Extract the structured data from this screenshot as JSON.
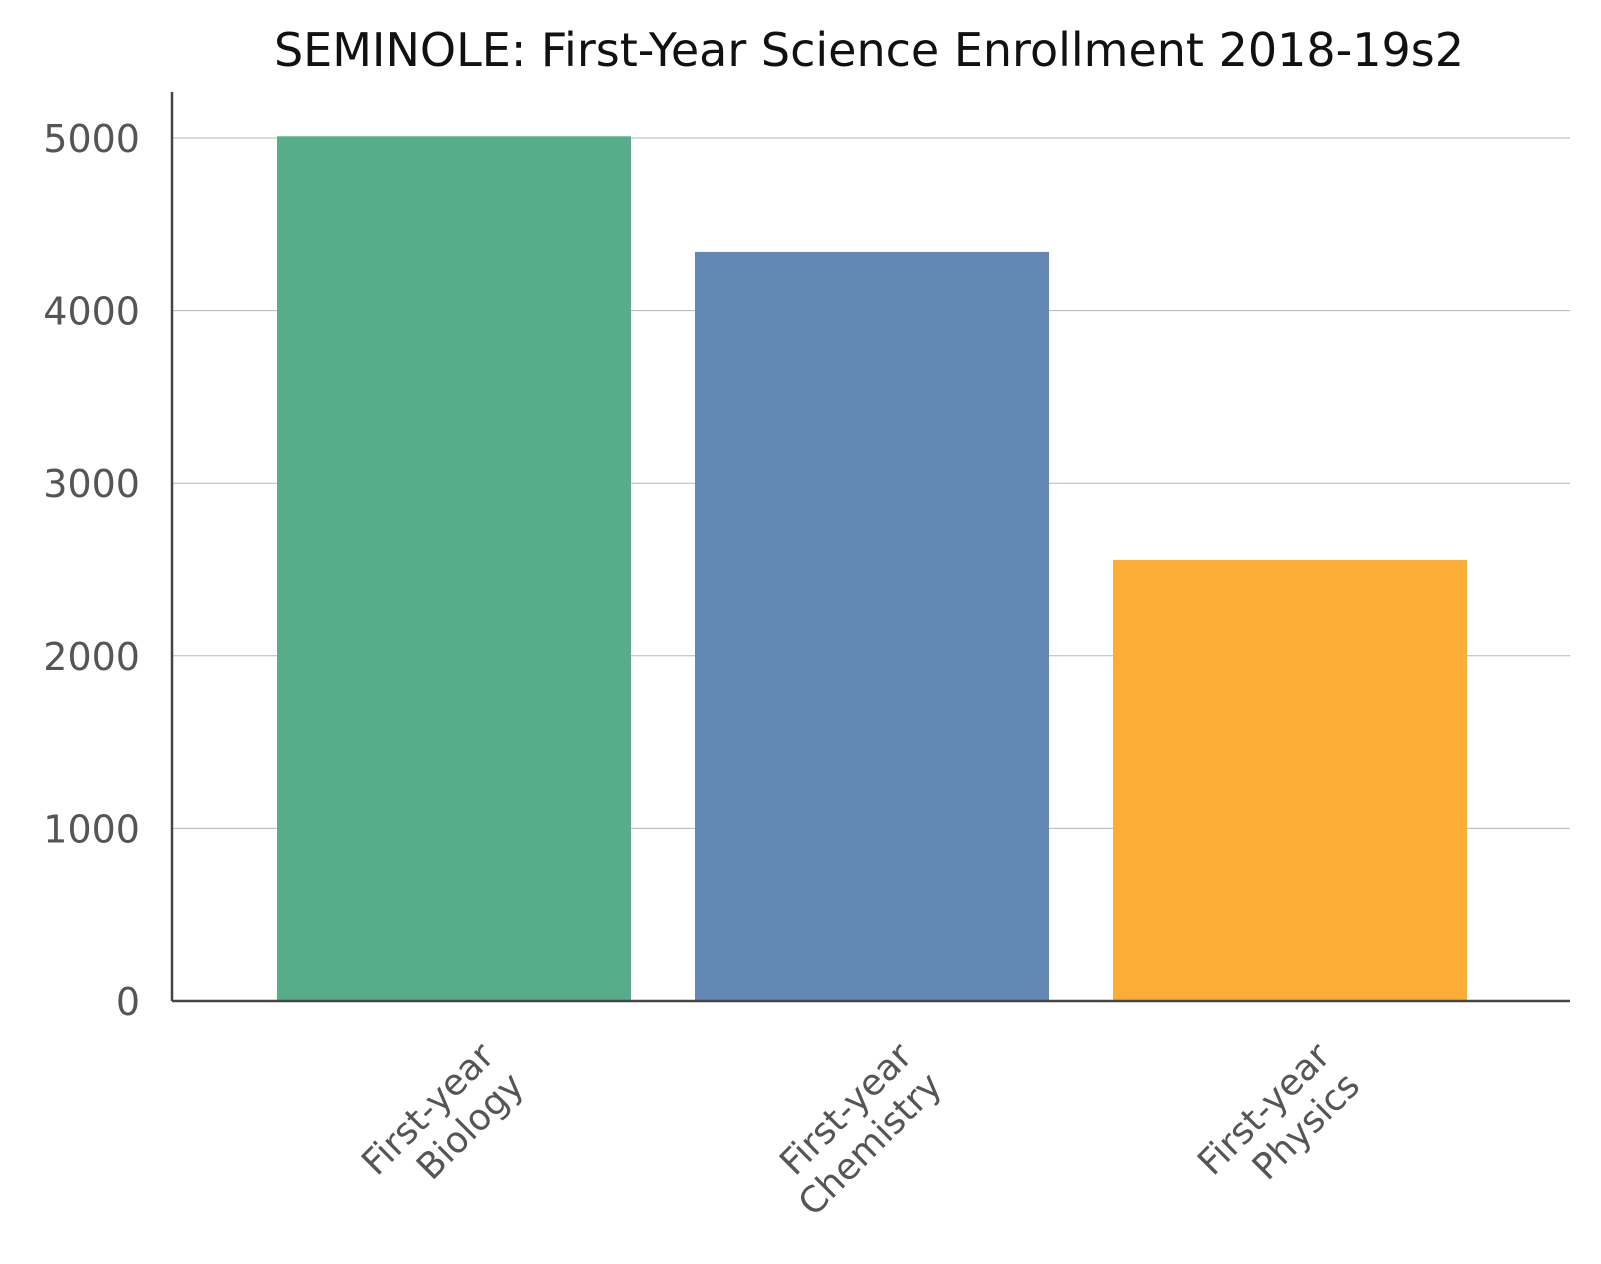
{
  "chart_data": {
    "type": "bar",
    "title": "SEMINOLE: First-Year Science Enrollment 2018-19s2",
    "xlabel": "",
    "ylabel": "",
    "categories": [
      [
        "First-year",
        "Biology"
      ],
      [
        "First-year",
        "Chemistry"
      ],
      [
        "First-year",
        "Physics"
      ]
    ],
    "values": [
      5010,
      4340,
      2555
    ],
    "ylim": [
      0,
      5000
    ],
    "yticks": [
      0,
      1000,
      2000,
      3000,
      4000,
      5000
    ],
    "colors": [
      "#57ad89",
      "#6388b3",
      "#fcad36"
    ],
    "grid": true,
    "legend": "none"
  }
}
